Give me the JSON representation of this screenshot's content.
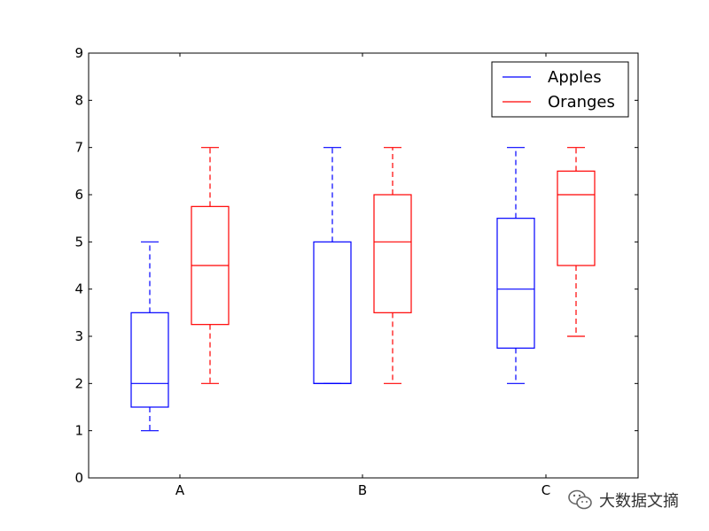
{
  "chart_data": {
    "type": "box",
    "categories": [
      "A",
      "B",
      "C"
    ],
    "ylim": [
      0,
      9
    ],
    "yticks": [
      0,
      1,
      2,
      3,
      4,
      5,
      6,
      7,
      8,
      9
    ],
    "grid": false,
    "legend_position": "top-right",
    "series": [
      {
        "name": "Apples",
        "color": "#0000ff",
        "boxes": [
          {
            "category": "A",
            "min": 1,
            "q1": 1.5,
            "median": 2,
            "q3": 3.5,
            "max": 5
          },
          {
            "category": "B",
            "min": 2,
            "q1": 2,
            "median": 2,
            "q3": 5,
            "max": 7
          },
          {
            "category": "C",
            "min": 2,
            "q1": 2.75,
            "median": 4,
            "q3": 5.5,
            "max": 7
          }
        ]
      },
      {
        "name": "Oranges",
        "color": "#ff0000",
        "boxes": [
          {
            "category": "A",
            "min": 2,
            "q1": 3.25,
            "median": 4.5,
            "q3": 5.75,
            "max": 7
          },
          {
            "category": "B",
            "min": 2,
            "q1": 3.5,
            "median": 5,
            "q3": 6,
            "max": 7
          },
          {
            "category": "C",
            "min": 3,
            "q1": 4.5,
            "median": 6,
            "q3": 6.5,
            "max": 7
          }
        ]
      }
    ]
  },
  "watermark": {
    "text": "大数据文摘",
    "icon": "wechat-icon"
  }
}
